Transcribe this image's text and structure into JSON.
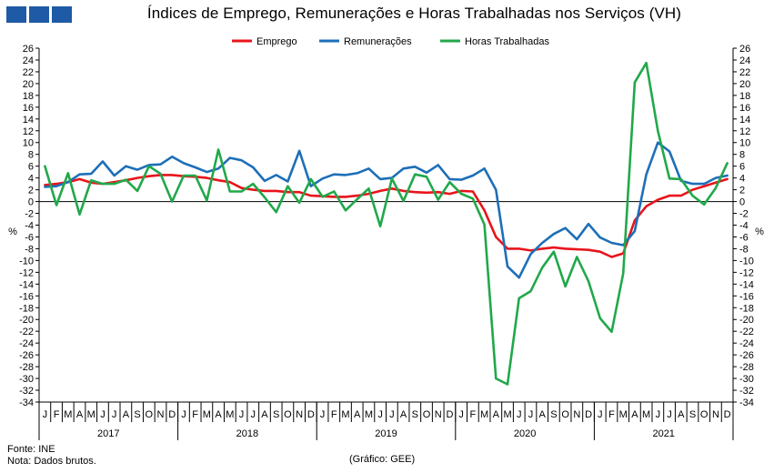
{
  "title": "Índices de Emprego, Remunerações e Horas Trabalhadas nos Serviços (VH)",
  "source": "Fonte: INE",
  "note": "Nota: Dados brutos.",
  "credit": "(Gráfico: GEE)",
  "colors": {
    "emprego": "#e8141b",
    "remuneracoes": "#1d6fb8",
    "horas": "#21a84a",
    "logo": "#1f5aa6"
  },
  "chart_data": {
    "type": "line",
    "title": "Índices de Emprego, Remunerações e Horas Trabalhadas nos Serviços (VH)",
    "ylabel": "%",
    "ylabel_right": "%",
    "ylim": [
      -34,
      26
    ],
    "ytick_step": 2,
    "legend_position": "top-center",
    "month_labels": [
      "J",
      "F",
      "M",
      "A",
      "M",
      "J",
      "J",
      "A",
      "S",
      "O",
      "N",
      "D"
    ],
    "years": [
      "2017",
      "2018",
      "2019",
      "2020",
      "2021"
    ],
    "x": [
      "2017-01",
      "2017-02",
      "2017-03",
      "2017-04",
      "2017-05",
      "2017-06",
      "2017-07",
      "2017-08",
      "2017-09",
      "2017-10",
      "2017-11",
      "2017-12",
      "2018-01",
      "2018-02",
      "2018-03",
      "2018-04",
      "2018-05",
      "2018-06",
      "2018-07",
      "2018-08",
      "2018-09",
      "2018-10",
      "2018-11",
      "2018-12",
      "2019-01",
      "2019-02",
      "2019-03",
      "2019-04",
      "2019-05",
      "2019-06",
      "2019-07",
      "2019-08",
      "2019-09",
      "2019-10",
      "2019-11",
      "2019-12",
      "2020-01",
      "2020-02",
      "2020-03",
      "2020-04",
      "2020-05",
      "2020-06",
      "2020-07",
      "2020-08",
      "2020-09",
      "2020-10",
      "2020-11",
      "2020-12",
      "2021-01",
      "2021-02",
      "2021-03",
      "2021-04",
      "2021-05",
      "2021-06",
      "2021-07",
      "2021-08",
      "2021-09",
      "2021-10",
      "2021-11",
      "2021-12"
    ],
    "series": [
      {
        "name": "Emprego",
        "key": "emprego",
        "values": [
          2.8,
          3.0,
          3.3,
          3.8,
          3.2,
          3.0,
          3.3,
          3.6,
          4.0,
          4.3,
          4.5,
          4.5,
          4.3,
          4.2,
          4.0,
          3.6,
          3.3,
          2.3,
          2.0,
          1.8,
          1.8,
          1.6,
          1.6,
          1.0,
          0.9,
          0.8,
          0.8,
          1.0,
          1.3,
          1.8,
          2.2,
          1.8,
          1.6,
          1.5,
          1.6,
          1.3,
          1.8,
          1.7,
          -1.5,
          -6.0,
          -8.0,
          -8.0,
          -8.3,
          -8.0,
          -7.8,
          -8.0,
          -8.1,
          -8.2,
          -8.5,
          -9.4,
          -8.8,
          -3.2,
          -0.8,
          0.3,
          1.0,
          1.0,
          2.0,
          2.6,
          3.2,
          3.8
        ]
      },
      {
        "name": "Remunerações",
        "key": "remuneracoes",
        "values": [
          2.5,
          2.6,
          3.3,
          4.6,
          4.7,
          6.8,
          4.4,
          6.0,
          5.4,
          6.2,
          6.3,
          7.6,
          6.5,
          5.8,
          5.0,
          5.6,
          7.4,
          7.0,
          5.8,
          3.5,
          4.5,
          3.4,
          8.6,
          2.6,
          3.9,
          4.6,
          4.5,
          4.8,
          5.6,
          3.8,
          4.0,
          5.6,
          5.9,
          4.9,
          6.2,
          3.8,
          3.7,
          4.4,
          5.6,
          2.0,
          -11.0,
          -12.9,
          -8.9,
          -7.0,
          -5.5,
          -4.5,
          -6.4,
          -3.8,
          -6.1,
          -7.0,
          -7.4,
          -5.0,
          4.6,
          10.0,
          8.5,
          3.5,
          3.0,
          3.0,
          4.0,
          4.4
        ]
      },
      {
        "name": "Horas Trabalhadas",
        "key": "horas",
        "values": [
          6.0,
          -0.6,
          4.8,
          -2.2,
          3.6,
          3.0,
          3.0,
          3.7,
          1.8,
          6.0,
          4.7,
          0.0,
          4.4,
          4.4,
          0.2,
          8.8,
          1.7,
          1.7,
          3.0,
          0.7,
          -1.8,
          2.6,
          -0.2,
          3.8,
          0.8,
          1.7,
          -1.5,
          0.4,
          2.2,
          -4.2,
          3.9,
          0.1,
          4.6,
          4.2,
          0.3,
          3.3,
          1.3,
          0.5,
          -3.9,
          -30.0,
          -31.0,
          -16.4,
          -15.2,
          -11.2,
          -8.5,
          -14.4,
          -9.4,
          -13.5,
          -19.8,
          -22.1,
          -12.2,
          20.2,
          23.5,
          12.0,
          3.9,
          3.8,
          1.0,
          -0.5,
          2.3,
          6.5
        ]
      }
    ]
  }
}
